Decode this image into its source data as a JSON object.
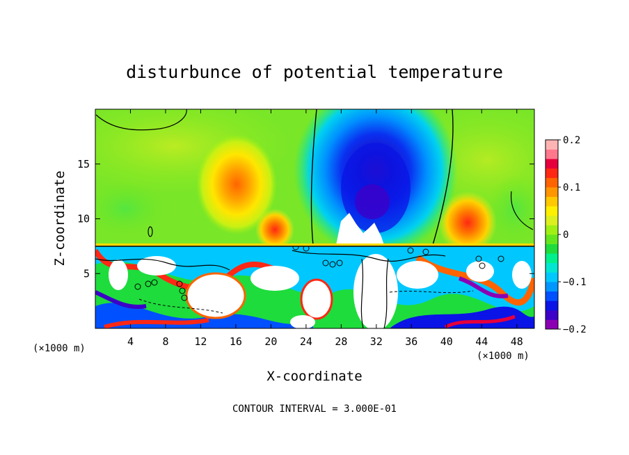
{
  "chart_data": {
    "type": "heatmap",
    "title": "disturbunce of potential temperature",
    "xlabel": "X-coordinate",
    "ylabel": "Z-coordinate",
    "x_unit_left": "(×1000 m)",
    "x_unit_right": "(×1000 m)",
    "xlim": [
      0,
      50
    ],
    "ylim": [
      0,
      20
    ],
    "x_ticks": [
      4,
      8,
      12,
      16,
      20,
      24,
      28,
      32,
      36,
      40,
      44,
      48
    ],
    "y_ticks": [
      5,
      10,
      15
    ],
    "colorbar": {
      "range": [
        -0.2,
        0.2
      ],
      "tick_labels": [
        "0.2",
        "0.1",
        "0",
        "−0.1",
        "−0.2"
      ],
      "tick_values": [
        0.2,
        0.1,
        0,
        -0.1,
        -0.2
      ],
      "colors": [
        "#8c00b4",
        "#3c00c8",
        "#0a14e6",
        "#0050ff",
        "#0096ff",
        "#00c8ff",
        "#00e6d2",
        "#00f08c",
        "#1edc3c",
        "#64e61e",
        "#a0f014",
        "#dcf01e",
        "#fff000",
        "#ffc800",
        "#ff9600",
        "#ff6400",
        "#ff2814",
        "#e6003c",
        "#ff788c",
        "#ffb4b4"
      ]
    },
    "footer": "CONTOUR INTERVAL = 3.000E-01",
    "features": [
      {
        "kind": "cold anomaly",
        "x": 30,
        "z": 12.5,
        "value": -0.2
      },
      {
        "kind": "warm anomaly",
        "x": 14,
        "z": 13,
        "value": 0.12
      },
      {
        "kind": "warm anomaly",
        "x": 21,
        "z": 9,
        "value": 0.1
      },
      {
        "kind": "warm anomaly",
        "x": 43,
        "z": 9.5,
        "value": 0.12
      },
      {
        "kind": "mixed layer top",
        "z": 7.6
      }
    ]
  }
}
